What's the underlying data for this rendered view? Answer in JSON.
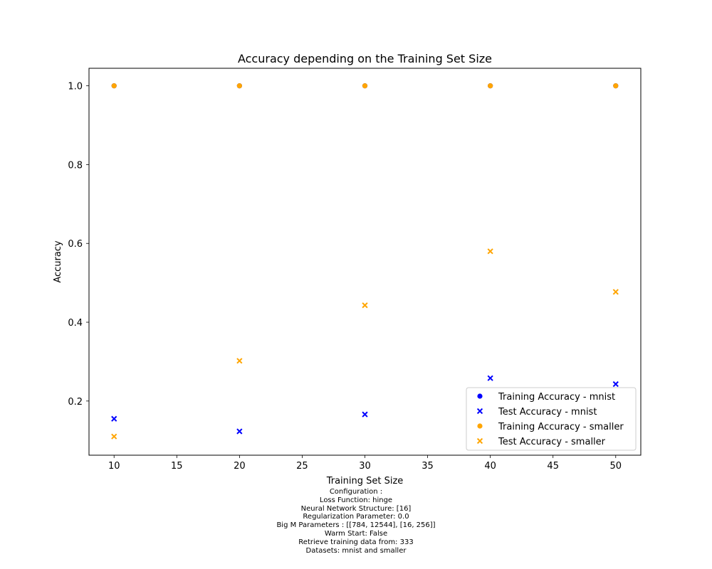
{
  "chart_data": {
    "type": "scatter",
    "title": "Accuracy depending on the Training Set Size",
    "xlabel": "Training Set Size",
    "ylabel": "Accuracy",
    "xlim": [
      8,
      52
    ],
    "ylim": [
      0.0625,
      1.0445
    ],
    "xticks": [
      10,
      15,
      20,
      25,
      30,
      35,
      40,
      45,
      50
    ],
    "yticks": [
      0.2,
      0.4,
      0.6,
      0.8,
      1.0
    ],
    "grid": false,
    "legend_position": "lower right",
    "series": [
      {
        "name": "Training Accuracy - mnist",
        "marker": "circle",
        "color": "#0000ff",
        "x": [
          10,
          20,
          30,
          40,
          50
        ],
        "y": [
          1.0,
          1.0,
          1.0,
          1.0,
          1.0
        ]
      },
      {
        "name": "Test Accuracy - mnist",
        "marker": "x",
        "color": "#0000ff",
        "x": [
          10,
          20,
          30,
          40,
          50
        ],
        "y": [
          0.155,
          0.123,
          0.166,
          0.258,
          0.243
        ]
      },
      {
        "name": "Training Accuracy - smaller",
        "marker": "circle",
        "color": "#ffa500",
        "x": [
          10,
          20,
          30,
          40,
          50
        ],
        "y": [
          1.0,
          1.0,
          1.0,
          1.0,
          1.0
        ]
      },
      {
        "name": "Test Accuracy - smaller",
        "marker": "x",
        "color": "#ffa500",
        "x": [
          10,
          20,
          30,
          40,
          50
        ],
        "y": [
          0.11,
          0.302,
          0.443,
          0.58,
          0.477
        ]
      }
    ]
  },
  "configuration": [
    "Configuration :",
    "Loss Function: hinge",
    "Neural Network Structure: [16]",
    "Regularization Parameter: 0.0",
    "Big M Parameters : [[784, 12544], [16, 256]]",
    "Warm Start: False",
    "Retrieve training data from: 333",
    "Datasets: mnist and smaller"
  ]
}
